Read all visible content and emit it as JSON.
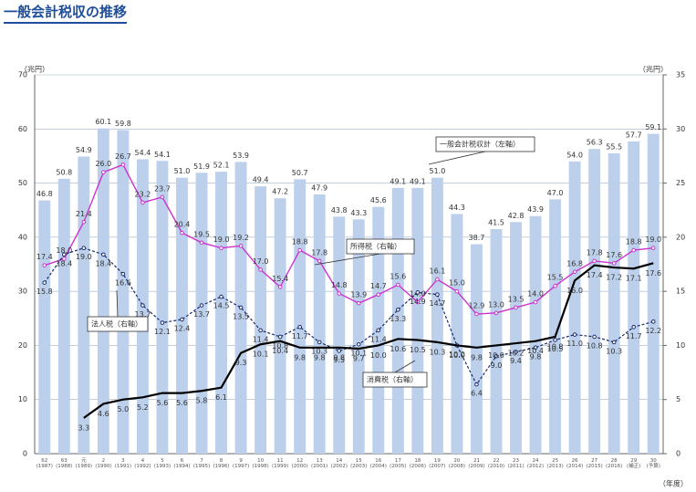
{
  "chart_data": {
    "type": "bar-line",
    "title": "一般会計税収の推移",
    "ylabel": "（兆円）",
    "y2label": "（兆円）",
    "xlabel": "（年度）",
    "categories": [
      "62\n(1987)",
      "63\n(1988)",
      "元\n(1989)",
      "2\n(1990)",
      "3\n(1991)",
      "4\n(1992)",
      "5\n(1993)",
      "6\n(1994)",
      "7\n(1995)",
      "8\n(1996)",
      "9\n(1997)",
      "10\n(1998)",
      "11\n(1999)",
      "12\n(2000)",
      "13\n(2001)",
      "14\n(2002)",
      "15\n(2003)",
      "16\n(2004)",
      "17\n(2005)",
      "18\n(2006)",
      "19\n(2007)",
      "20\n(2008)",
      "21\n(2009)",
      "22\n(2010)",
      "23\n(2011)",
      "24\n(2012)",
      "25\n(2013)",
      "26\n(2014)",
      "27\n(2015)",
      "28\n(2016)",
      "29\n(補正)",
      "30\n(予算)"
    ],
    "ylim": [
      0,
      70
    ],
    "yticks": [
      0,
      10,
      20,
      30,
      40,
      50,
      60,
      70
    ],
    "y2lim": [
      0,
      35
    ],
    "y2ticks": [
      0,
      5,
      10,
      15,
      20,
      25,
      30,
      35
    ],
    "grid": true,
    "series": [
      {
        "name": "一般会計税収計（左軸）",
        "type": "bar",
        "color": "#bcd0ec",
        "values": [
          46.8,
          50.8,
          54.9,
          60.1,
          59.8,
          54.4,
          54.1,
          51.0,
          51.9,
          52.1,
          53.9,
          49.4,
          47.2,
          50.7,
          47.9,
          43.8,
          43.3,
          45.6,
          49.1,
          49.1,
          51.0,
          44.3,
          38.7,
          41.5,
          42.8,
          43.9,
          47.0,
          54.0,
          56.3,
          55.5,
          57.7,
          59.1
        ],
        "value_labels": [
          "46.8",
          "50.8",
          "54.9",
          "60.1",
          "59.8",
          "54.4",
          "54.1",
          "51.0",
          "51.9",
          "52.1",
          "53.9",
          "49.4",
          "47.2",
          "50.7",
          "47.9",
          "43.8",
          "43.3",
          "45.6",
          "49.1",
          "49.1",
          "51.0",
          "44.3",
          "38.7",
          "41.5",
          "42.8",
          "43.9",
          "47.0",
          "54.0",
          "56.3",
          "55.5",
          "57.7",
          "59.1"
        ]
      },
      {
        "name": "所得税（右軸）",
        "type": "line",
        "axis": "y2",
        "color": "#cc33cc",
        "values": [
          17.4,
          18.0,
          21.4,
          26.0,
          26.7,
          23.2,
          23.7,
          20.4,
          19.5,
          19.0,
          19.2,
          17.0,
          15.4,
          18.8,
          17.8,
          14.8,
          13.9,
          14.7,
          15.6,
          14.0,
          16.1,
          15.0,
          12.9,
          13.0,
          13.5,
          14.0,
          15.5,
          16.8,
          17.8,
          17.6,
          18.8,
          19.0
        ],
        "value_labels": [
          "17.4",
          "18.0",
          "21.4",
          "26.0",
          "26.7",
          "23.2",
          "23.7",
          "20.4",
          "19.5",
          "19.0",
          "19.2",
          "17.0",
          "15.4",
          "18.8",
          "17.8",
          "14.8",
          "13.9",
          "14.7",
          "15.6",
          "14.0",
          "16.1",
          "15.0",
          "12.9",
          "13.0",
          "13.5",
          "14.0",
          "15.5",
          "16.8",
          "17.8",
          "17.6",
          "18.8",
          "19.0"
        ]
      },
      {
        "name": "法人税（右軸）",
        "type": "line",
        "axis": "y2",
        "color": "#1a2a6c",
        "dashed": true,
        "values": [
          15.8,
          18.4,
          19.0,
          18.4,
          16.6,
          13.7,
          12.1,
          12.4,
          13.7,
          14.5,
          13.5,
          11.4,
          10.8,
          11.7,
          10.3,
          9.5,
          10.1,
          11.4,
          13.3,
          14.9,
          14.7,
          10.0,
          6.4,
          9.0,
          9.4,
          9.8,
          10.5,
          11.0,
          10.8,
          10.3,
          11.7,
          12.2
        ],
        "value_labels": [
          "15.8",
          "18.4",
          "19.0",
          "18.4",
          "16.6",
          "13.7",
          "12.1",
          "12.4",
          "13.7",
          "14.5",
          "13.5",
          "11.4",
          "10.8",
          "11.7",
          "10.3",
          "9.5",
          "10.1",
          "11.4",
          "13.3",
          "14.9",
          "14.7",
          "10.0",
          "6.4",
          "9.0",
          "9.4",
          "9.8",
          "10.5",
          "11.0",
          "10.8",
          "10.3",
          "11.7",
          "12.2"
        ]
      },
      {
        "name": "消費税（右軸）",
        "type": "line",
        "axis": "y2",
        "color": "#000000",
        "values": [
          null,
          null,
          3.3,
          4.6,
          5.0,
          5.2,
          5.6,
          5.6,
          5.8,
          6.1,
          9.3,
          10.1,
          10.4,
          9.8,
          9.8,
          9.8,
          9.7,
          10.0,
          10.6,
          10.5,
          10.3,
          10.0,
          9.8,
          10.0,
          10.2,
          10.4,
          10.8,
          16.0,
          17.4,
          17.2,
          17.1,
          17.6
        ],
        "value_labels": [
          null,
          null,
          "3.3",
          "4.6",
          "5.0",
          "5.2",
          "5.6",
          "5.6",
          "5.8",
          "6.1",
          "9.3",
          "10.1",
          "10.4",
          "9.8",
          "9.8",
          "9.8",
          "9.7",
          "10.0",
          "10.6",
          "10.5",
          "10.3",
          "10.0",
          "9.8",
          "10.0",
          "10.2",
          "10.4",
          "10.8",
          "16.0",
          "17.4",
          "17.2",
          "17.1",
          "17.6"
        ]
      }
    ]
  }
}
